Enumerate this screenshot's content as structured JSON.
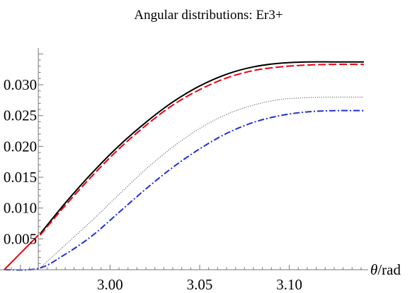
{
  "chart_data": {
    "type": "line",
    "title": "Angular distributions: Er3+",
    "xlabel_italic": "θ",
    "xlabel_rest": "/rad",
    "ylabel": "",
    "xlim": [
      2.941,
      3.1416
    ],
    "ylim": [
      0.0,
      0.0355
    ],
    "x_axis_crossing": 2.96,
    "x_ticks": [
      {
        "value": 3.0,
        "label": "3.00"
      },
      {
        "value": 3.05,
        "label": "3.05"
      },
      {
        "value": 3.1,
        "label": "3.10"
      }
    ],
    "y_ticks": [
      {
        "value": 0.005,
        "label": "0.005"
      },
      {
        "value": 0.01,
        "label": "0.010"
      },
      {
        "value": 0.015,
        "label": "0.015"
      },
      {
        "value": 0.02,
        "label": "0.020"
      },
      {
        "value": 0.025,
        "label": "0.025"
      },
      {
        "value": 0.03,
        "label": "0.030"
      }
    ],
    "grid": false,
    "legend": "none",
    "series": [
      {
        "style": "solid",
        "color": "#000000",
        "x": [
          2.961,
          2.975,
          2.99,
          3.005,
          3.02,
          3.035,
          3.05,
          3.065,
          3.08,
          3.095,
          3.11,
          3.125,
          3.1416
        ],
        "y": [
          0.0058,
          0.0108,
          0.0157,
          0.0201,
          0.0239,
          0.0272,
          0.0298,
          0.0317,
          0.0329,
          0.0335,
          0.0337,
          0.0337,
          0.0337
        ]
      },
      {
        "style": "dashed",
        "color": "#e8000b",
        "x": [
          2.961,
          2.975,
          2.99,
          3.005,
          3.02,
          3.035,
          3.05,
          3.065,
          3.08,
          3.095,
          3.11,
          3.125,
          3.1416
        ],
        "y": [
          0.0056,
          0.0104,
          0.0152,
          0.0196,
          0.0234,
          0.0267,
          0.0292,
          0.0311,
          0.0323,
          0.0329,
          0.0332,
          0.0333,
          0.0333
        ]
      },
      {
        "style": "dotted",
        "color": "#555555",
        "x": [
          2.961,
          2.975,
          2.99,
          3.005,
          3.02,
          3.035,
          3.05,
          3.065,
          3.08,
          3.095,
          3.11,
          3.125,
          3.1416
        ],
        "y": [
          0.0003,
          0.004,
          0.008,
          0.0122,
          0.0163,
          0.0199,
          0.0229,
          0.0252,
          0.0267,
          0.0276,
          0.0279,
          0.028,
          0.028
        ]
      },
      {
        "style": "dashdot",
        "color": "#1f2fd6",
        "x": [
          2.941,
          2.96,
          2.975,
          2.99,
          3.005,
          3.02,
          3.035,
          3.05,
          3.065,
          3.08,
          3.095,
          3.11,
          3.125,
          3.1416
        ],
        "y": [
          0.0,
          0.0002,
          0.0025,
          0.0055,
          0.0093,
          0.0131,
          0.0166,
          0.0196,
          0.0221,
          0.0239,
          0.025,
          0.0256,
          0.0258,
          0.0258
        ]
      }
    ]
  }
}
